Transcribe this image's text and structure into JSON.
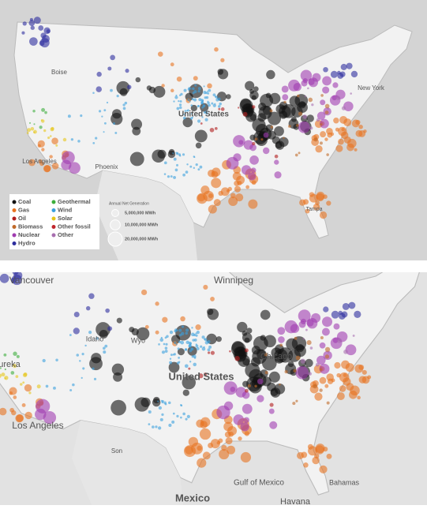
{
  "top_map": {
    "labels": [
      "Boise",
      "United States",
      "Los Angeles",
      "Phoenix",
      "New York",
      "Tampa"
    ],
    "legend": {
      "items": [
        {
          "name": "Coal",
          "color": "#111111"
        },
        {
          "name": "Gas",
          "color": "#e8731f"
        },
        {
          "name": "Oil",
          "color": "#b01c1c"
        },
        {
          "name": "Biomass",
          "color": "#c06a2a"
        },
        {
          "name": "Nuclear",
          "color": "#a03cb0"
        },
        {
          "name": "Hydro",
          "color": "#2d2d9e"
        },
        {
          "name": "Geothermal",
          "color": "#3cae3c"
        },
        {
          "name": "Wind",
          "color": "#3aa0dd"
        },
        {
          "name": "Solar",
          "color": "#e6c619"
        },
        {
          "name": "Other fossil",
          "color": "#c0262c"
        },
        {
          "name": "Other",
          "color": "#a86fb0"
        }
      ],
      "size_title": "Annual Net Generation",
      "sizes": [
        {
          "value": 5000000,
          "label": "5,000,000 MWh"
        },
        {
          "value": 10000000,
          "label": "10,000,000 MWh"
        },
        {
          "value": 20000000,
          "label": "20,000,000 MWh"
        }
      ]
    }
  },
  "bottom_map": {
    "labels": [
      "Vancouver",
      "Winnipeg",
      "Idaho",
      "Wyo",
      "United States",
      "Chicago",
      "ureka",
      "Los Angeles",
      "Mexico",
      "Gulf of Mexico",
      "Bahamas",
      "Havana",
      "Son"
    ]
  }
}
